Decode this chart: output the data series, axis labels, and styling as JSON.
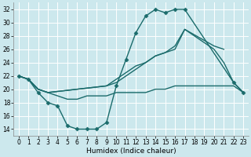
{
  "xlabel": "Humidex (Indice chaleur)",
  "xlim": [
    -0.5,
    23.5
  ],
  "ylim": [
    13.0,
    33.0
  ],
  "yticks": [
    14,
    16,
    18,
    20,
    22,
    24,
    26,
    28,
    30,
    32
  ],
  "xticks": [
    0,
    1,
    2,
    3,
    4,
    5,
    6,
    7,
    8,
    9,
    10,
    11,
    12,
    13,
    14,
    15,
    16,
    17,
    18,
    19,
    20,
    21,
    22,
    23
  ],
  "bg_color": "#cce8ed",
  "grid_color": "#ffffff",
  "line_color": "#1a6b6b",
  "lines": [
    {
      "x": [
        0,
        1,
        2,
        3,
        4,
        5,
        6,
        7,
        8,
        9,
        10,
        11,
        12,
        13,
        14,
        15,
        16,
        17,
        22,
        23
      ],
      "y": [
        22,
        21.5,
        19.5,
        18,
        17.5,
        14.5,
        14,
        14,
        14,
        15,
        20.5,
        24.5,
        28.5,
        31,
        32,
        31.5,
        32,
        32,
        21,
        19.5
      ],
      "marker": "D",
      "markersize": 2.5,
      "lw": 1.0
    },
    {
      "x": [
        0,
        1,
        2,
        3,
        9,
        10,
        11,
        12,
        13,
        14,
        15,
        16,
        17,
        20,
        21,
        22,
        23
      ],
      "y": [
        22,
        21.5,
        20,
        19.5,
        20.5,
        21.5,
        22.5,
        23.5,
        24,
        25,
        25.5,
        26,
        29,
        26,
        24,
        21,
        19.5
      ],
      "marker": null,
      "markersize": 0,
      "lw": 1.0
    },
    {
      "x": [
        0,
        1,
        2,
        3,
        4,
        5,
        6,
        7,
        8,
        9,
        10,
        11,
        12,
        13,
        14,
        15,
        16,
        17,
        18,
        19,
        20,
        21,
        22,
        23
      ],
      "y": [
        22,
        21.5,
        20,
        19.5,
        19,
        18.5,
        18.5,
        19,
        19,
        19,
        19.5,
        19.5,
        19.5,
        19.5,
        20,
        20,
        20.5,
        20.5,
        20.5,
        20.5,
        20.5,
        20.5,
        20.5,
        19.5
      ],
      "marker": null,
      "markersize": 0,
      "lw": 1.0
    },
    {
      "x": [
        0,
        1,
        2,
        3,
        9,
        10,
        11,
        12,
        13,
        14,
        15,
        16,
        17,
        20,
        21
      ],
      "y": [
        22,
        21.5,
        20,
        19.5,
        20.5,
        21,
        22,
        23,
        24,
        25,
        25.5,
        26.5,
        29,
        26.5,
        26
      ],
      "marker": null,
      "markersize": 0,
      "lw": 1.0
    }
  ]
}
